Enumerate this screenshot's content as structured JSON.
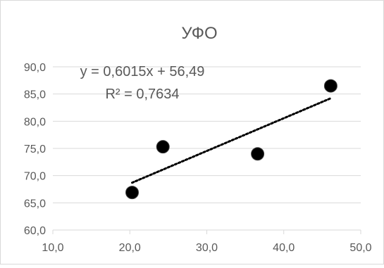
{
  "chart_data": {
    "type": "scatter",
    "title": "УФО",
    "xlim": [
      10,
      50
    ],
    "ylim": [
      60,
      90
    ],
    "x_ticks": [
      10,
      20,
      30,
      40,
      50
    ],
    "x_tick_labels": [
      "10,0",
      "20,0",
      "30,0",
      "40,0",
      "50,0"
    ],
    "y_ticks": [
      60,
      65,
      70,
      75,
      80,
      85,
      90
    ],
    "y_tick_labels": [
      "60,0",
      "65,0",
      "70,0",
      "75,0",
      "80,0",
      "85,0",
      "90,0"
    ],
    "grid": "horizontal",
    "legend": "none",
    "series": [
      {
        "points": [
          {
            "x": 20.3,
            "y": 66.9
          },
          {
            "x": 24.3,
            "y": 75.3
          },
          {
            "x": 36.6,
            "y": 74.0
          },
          {
            "x": 46.1,
            "y": 86.5
          }
        ]
      }
    ],
    "trendline": {
      "type": "linear",
      "slope": 0.6015,
      "intercept": 56.49,
      "x_start": 20.3,
      "x_end": 46.1,
      "style": "dotted"
    },
    "annotations": {
      "equation": "y = 0,6015x + 56,49",
      "r_squared": "R² = 0,7634"
    },
    "colors": {
      "marker": "#000000",
      "trendline": "#000000",
      "grid": "#d9d9d9",
      "text": "#595959",
      "title": "#595959",
      "border": "#d9d9d9"
    }
  }
}
